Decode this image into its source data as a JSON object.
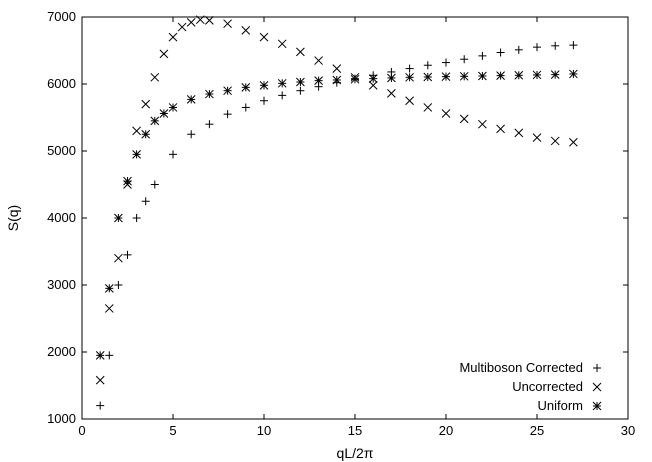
{
  "chart_data": {
    "type": "scatter",
    "title": "",
    "xlabel": "qL/2π",
    "ylabel": "S(q)",
    "xlim": [
      0,
      30
    ],
    "ylim": [
      1000,
      7000
    ],
    "x_ticks": [
      "0",
      "5",
      "10",
      "15",
      "20",
      "25",
      "30"
    ],
    "y_ticks": [
      "1000",
      "2000",
      "3000",
      "4000",
      "5000",
      "6000",
      "7000"
    ],
    "grid": false,
    "legend_position": "bottom-right",
    "series": [
      {
        "name": "Multiboson Corrected",
        "marker": "plus",
        "x": [
          1.0,
          1.5,
          2.0,
          2.5,
          3.0,
          3.5,
          4.0,
          5.0,
          6.0,
          7.0,
          8.0,
          9.0,
          10.0,
          11.0,
          12.0,
          13.0,
          14.0,
          15.0,
          16.0,
          17.0,
          18.0,
          19.0,
          20.0,
          21.0,
          22.0,
          23.0,
          24.0,
          25.0,
          26.0,
          27.0
        ],
        "y": [
          1200,
          1950,
          3000,
          3450,
          4000,
          4250,
          4500,
          4950,
          5250,
          5400,
          5550,
          5650,
          5750,
          5830,
          5900,
          5960,
          6020,
          6080,
          6130,
          6180,
          6230,
          6280,
          6320,
          6370,
          6420,
          6470,
          6510,
          6550,
          6570,
          6580
        ]
      },
      {
        "name": "Uncorrected",
        "marker": "cross",
        "x": [
          1.0,
          1.5,
          2.0,
          2.5,
          3.0,
          3.5,
          4.0,
          4.5,
          5.0,
          5.5,
          6.0,
          6.5,
          7.0,
          8.0,
          9.0,
          10.0,
          11.0,
          12.0,
          13.0,
          14.0,
          15.0,
          16.0,
          17.0,
          18.0,
          19.0,
          20.0,
          21.0,
          22.0,
          23.0,
          24.0,
          25.0,
          26.0,
          27.0
        ],
        "y": [
          1580,
          2650,
          3400,
          4500,
          5300,
          5700,
          6100,
          6450,
          6700,
          6850,
          6920,
          6960,
          6950,
          6900,
          6800,
          6700,
          6600,
          6480,
          6350,
          6230,
          6100,
          5980,
          5860,
          5750,
          5650,
          5560,
          5480,
          5400,
          5330,
          5270,
          5200,
          5150,
          5130
        ]
      },
      {
        "name": "Uniform",
        "marker": "star",
        "x": [
          1.0,
          1.5,
          2.0,
          2.5,
          3.0,
          3.5,
          4.0,
          4.5,
          5.0,
          6.0,
          7.0,
          8.0,
          9.0,
          10.0,
          11.0,
          12.0,
          13.0,
          14.0,
          15.0,
          16.0,
          17.0,
          18.0,
          19.0,
          20.0,
          21.0,
          22.0,
          23.0,
          24.0,
          25.0,
          26.0,
          27.0
        ],
        "y": [
          1950,
          2950,
          4000,
          4550,
          4950,
          5250,
          5450,
          5560,
          5650,
          5770,
          5850,
          5900,
          5950,
          5980,
          6010,
          6030,
          6050,
          6060,
          6070,
          6080,
          6090,
          6100,
          6105,
          6110,
          6115,
          6120,
          6125,
          6130,
          6135,
          6140,
          6150
        ]
      }
    ]
  }
}
